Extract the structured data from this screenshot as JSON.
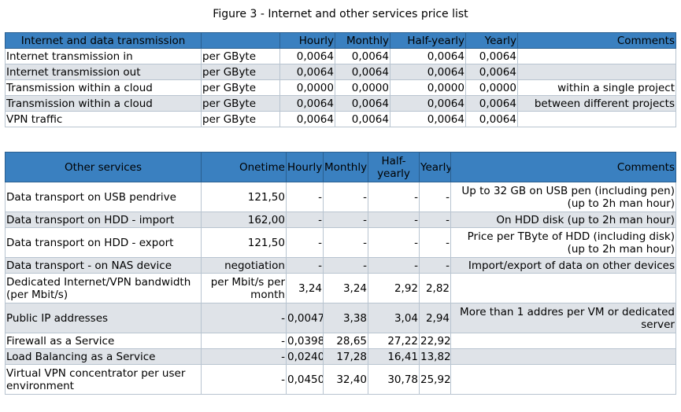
{
  "caption": "Figure 3 - Internet and other services price list",
  "internet_table": {
    "headers": [
      "Internet and data transmission",
      "",
      "Hourly",
      "Monthly",
      "Half-yearly",
      "Yearly",
      "Comments"
    ],
    "rows": [
      [
        "Internet transmission in",
        "per GByte",
        "0,0064",
        "0,0064",
        "0,0064",
        "0,0064",
        ""
      ],
      [
        "Internet transmission out",
        "per GByte",
        "0,0064",
        "0,0064",
        "0,0064",
        "0,0064",
        ""
      ],
      [
        "Transmission within a cloud",
        "per GByte",
        "0,0000",
        "0,0000",
        "0,0000",
        "0,0000",
        "within a single project"
      ],
      [
        "Transmission within a cloud",
        "per GByte",
        "0,0064",
        "0,0064",
        "0,0064",
        "0,0064",
        "between different projects"
      ],
      [
        "VPN traffic",
        "per GByte",
        "0,0064",
        "0,0064",
        "0,0064",
        "0,0064",
        ""
      ]
    ]
  },
  "services_table": {
    "headers": [
      "Other services",
      "Onetime",
      "Hourly",
      "Monthly",
      "Half-yearly",
      "Yearly",
      "Comments"
    ],
    "rows": [
      [
        "Data transport on USB pendrive",
        "121,50",
        "-",
        "-",
        "-",
        "-",
        "Up to 32 GB on USB pen (including pen) (up to 2h man hour)"
      ],
      [
        "Data transport on HDD - import",
        "162,00",
        "-",
        "-",
        "-",
        "-",
        "On HDD disk (up to 2h man hour)"
      ],
      [
        "Data transport on HDD - export",
        "121,50",
        "-",
        "-",
        "-",
        "-",
        "Price per TByte of HDD (including disk) (up to 2h man hour)"
      ],
      [
        "Data transport - on NAS device",
        "negotiation",
        "-",
        "-",
        "-",
        "-",
        "Import/export of data on other devices"
      ],
      [
        "Dedicated Internet/VPN bandwidth (per Mbit/s)",
        "per Mbit/s per month",
        "3,24",
        "3,24",
        "2,92",
        "2,82",
        ""
      ],
      [
        "Public IP addresses",
        "-",
        "0,0047",
        "3,38",
        "3,04",
        "2,94",
        "More than 1 addres per VM or dedicated server"
      ],
      [
        "Firewall as a Service",
        "-",
        "0,0398",
        "28,65",
        "27,22",
        "22,92",
        ""
      ],
      [
        "Load Balancing as a Service",
        "-",
        "0,0240",
        "17,28",
        "16,41",
        "13,82",
        ""
      ],
      [
        "Virtual VPN concentrator per user environment",
        "-",
        "0,0450",
        "32,40",
        "30,78",
        "25,92",
        ""
      ]
    ]
  }
}
